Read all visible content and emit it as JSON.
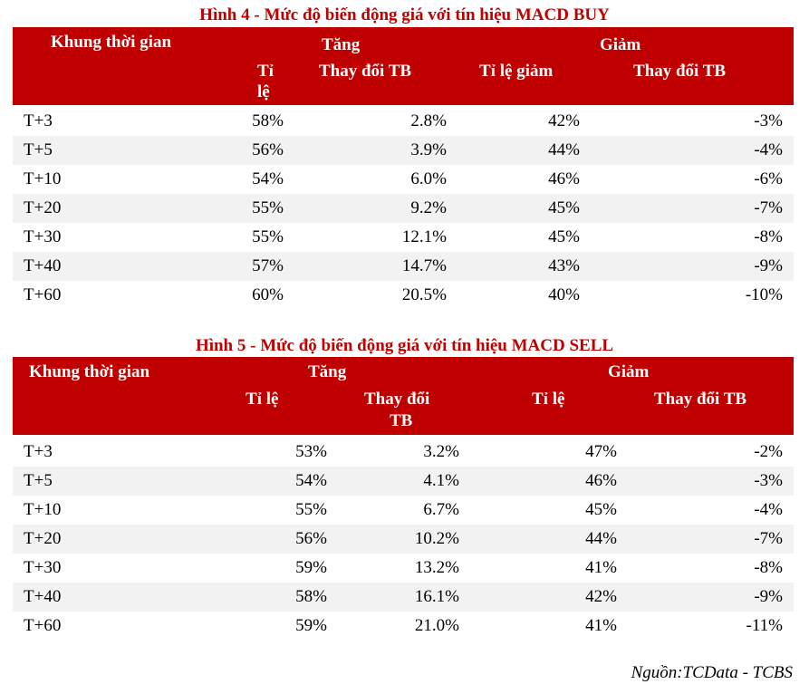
{
  "fig4": {
    "title": "Hình 4  - Mức độ biến động giá với tín hiệu MACD BUY",
    "header": {
      "timeframe": "Khung thời gian",
      "up_group": "Tăng",
      "down_group": "Giảm",
      "up_rate_line1": "Tỉ",
      "up_rate_line2": "lệ",
      "up_change": "Thay đổi TB",
      "down_rate": "Tỉ lệ giảm",
      "down_change": "Thay đổi  TB"
    },
    "rows": [
      {
        "t": "T+3",
        "up_rate": "58%",
        "up_change": "2.8%",
        "down_rate": "42%",
        "down_change": "-3%"
      },
      {
        "t": "T+5",
        "up_rate": "56%",
        "up_change": "3.9%",
        "down_rate": "44%",
        "down_change": "-4%"
      },
      {
        "t": "T+10",
        "up_rate": "54%",
        "up_change": "6.0%",
        "down_rate": "46%",
        "down_change": "-6%"
      },
      {
        "t": "T+20",
        "up_rate": "55%",
        "up_change": "9.2%",
        "down_rate": "45%",
        "down_change": "-7%"
      },
      {
        "t": "T+30",
        "up_rate": "55%",
        "up_change": "12.1%",
        "down_rate": "45%",
        "down_change": "-8%"
      },
      {
        "t": "T+40",
        "up_rate": "57%",
        "up_change": "14.7%",
        "down_rate": "43%",
        "down_change": "-9%"
      },
      {
        "t": "T+60",
        "up_rate": "60%",
        "up_change": "20.5%",
        "down_rate": "40%",
        "down_change": "-10%"
      }
    ]
  },
  "fig5": {
    "title": "Hình 5 - Mức độ biến động giá với tín hiệu MACD SELL",
    "header": {
      "timeframe": "Khung thời gian",
      "up_group": "Tăng",
      "down_group": "Giảm",
      "up_rate": "Tỉ lệ",
      "up_change_line1": "Thay đổi",
      "up_change_line2": "TB",
      "down_rate": "Tỉ lệ",
      "down_change": "Thay đổi  TB"
    },
    "rows": [
      {
        "t": "T+3",
        "up_rate": "53%",
        "up_change": "3.2%",
        "down_rate": "47%",
        "down_change": "-2%"
      },
      {
        "t": "T+5",
        "up_rate": "54%",
        "up_change": "4.1%",
        "down_rate": "46%",
        "down_change": "-3%"
      },
      {
        "t": "T+10",
        "up_rate": "55%",
        "up_change": "6.7%",
        "down_rate": "45%",
        "down_change": "-4%"
      },
      {
        "t": "T+20",
        "up_rate": "56%",
        "up_change": "10.2%",
        "down_rate": "44%",
        "down_change": "-7%"
      },
      {
        "t": "T+30",
        "up_rate": "59%",
        "up_change": "13.2%",
        "down_rate": "41%",
        "down_change": "-8%"
      },
      {
        "t": "T+40",
        "up_rate": "58%",
        "up_change": "16.1%",
        "down_rate": "42%",
        "down_change": "-9%"
      },
      {
        "t": "T+60",
        "up_rate": "59%",
        "up_change": "21.0%",
        "down_rate": "41%",
        "down_change": "-11%"
      }
    ]
  },
  "source": "Nguồn:TCData - TCBS",
  "colors": {
    "header_bg": "#c00000",
    "title": "#c00000",
    "row_shade": "#f2f2f2"
  }
}
